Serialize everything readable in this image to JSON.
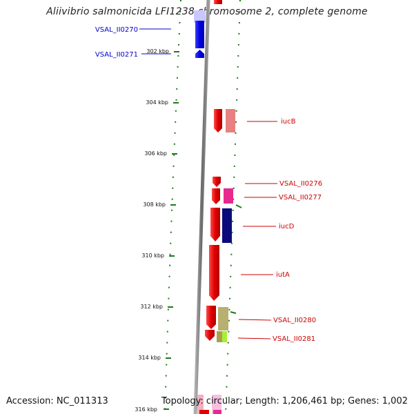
{
  "title": "Aliivibrio salmonicida LFI1238 chromosome 2, complete genome",
  "footer": {
    "accession": "Accession: NC_011313",
    "info": "Topology: circular; Length: 1,206,461 bp; Genes: 1,002"
  },
  "ticks": [
    "302 kbp",
    "304 kbp",
    "306 kbp",
    "308 kbp",
    "310 kbp",
    "312 kbp",
    "314 kbp",
    "316 kbp"
  ],
  "genes": [
    {
      "label": "VSAL_II0270",
      "color": "#0000cc"
    },
    {
      "label": "VSAL_II0271",
      "color": "#0000cc"
    },
    {
      "label": "iucB",
      "color": "#cc0000"
    },
    {
      "label": "VSAL_II0276",
      "color": "#cc0000"
    },
    {
      "label": "VSAL_II0277",
      "color": "#cc0000"
    },
    {
      "label": "iucD",
      "color": "#cc0000"
    },
    {
      "label": "iutA",
      "color": "#cc0000"
    },
    {
      "label": "VSAL_II0280",
      "color": "#cc0000"
    },
    {
      "label": "VSAL_II0281",
      "color": "#cc0000"
    }
  ]
}
